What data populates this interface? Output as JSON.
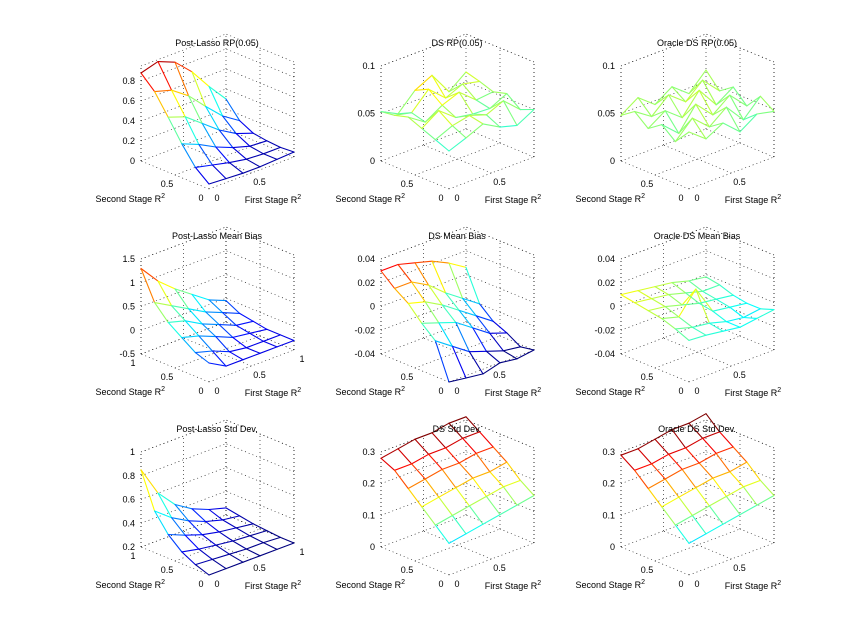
{
  "figure": {
    "background": "#ffffff",
    "colormap": "jet"
  },
  "chart_data": [
    {
      "type": "surface",
      "title": "Post-Lasso RP(0.05)",
      "xlabel": "First Stage R",
      "ylabel": "Second Stage R",
      "label_superscript": "2",
      "x_ticks": [
        "0",
        "0.5"
      ],
      "y_ticks": [
        "0",
        "0.5"
      ],
      "z_ticks": [
        "0",
        "0.2",
        "0.4",
        "0.6",
        "0.8"
      ],
      "zlim": [
        0,
        0.95
      ],
      "grid": "on",
      "x": [
        0,
        0.2,
        0.4,
        0.6,
        0.8,
        1.0
      ],
      "y": [
        0,
        0.2,
        0.4,
        0.6,
        0.8,
        1.0
      ],
      "z": [
        [
          0.05,
          0.04,
          0.03,
          0.03,
          0.04,
          0.05
        ],
        [
          0.16,
          0.12,
          0.08,
          0.05,
          0.04,
          0.04
        ],
        [
          0.34,
          0.27,
          0.18,
          0.11,
          0.06,
          0.05
        ],
        [
          0.55,
          0.49,
          0.36,
          0.23,
          0.13,
          0.07
        ],
        [
          0.75,
          0.7,
          0.58,
          0.41,
          0.25,
          0.14
        ],
        [
          0.88,
          0.93,
          0.86,
          0.7,
          0.49,
          0.3
        ]
      ]
    },
    {
      "type": "surface",
      "title": "DS RP(0.05)",
      "xlabel": "First Stage R",
      "ylabel": "Second Stage R",
      "label_superscript": "2",
      "x_ticks": [
        "0",
        "0.5"
      ],
      "y_ticks": [
        "0",
        "0.5"
      ],
      "z_ticks": [
        "0",
        "0.05",
        "0.1"
      ],
      "zlim": [
        0,
        0.1
      ],
      "grid": "on",
      "x": [
        0,
        0.2,
        0.4,
        0.6,
        0.8,
        1.0
      ],
      "y": [
        0,
        0.2,
        0.4,
        0.6,
        0.8,
        1.0
      ],
      "z": [
        [
          0.04,
          0.047,
          0.055,
          0.045,
          0.04,
          0.05
        ],
        [
          0.046,
          0.054,
          0.058,
          0.052,
          0.06,
          0.044
        ],
        [
          0.052,
          0.064,
          0.05,
          0.047,
          0.046,
          0.055
        ],
        [
          0.058,
          0.046,
          0.057,
          0.064,
          0.049,
          0.051
        ],
        [
          0.054,
          0.05,
          0.068,
          0.052,
          0.06,
          0.056
        ],
        [
          0.052,
          0.043,
          0.061,
          0.07,
          0.046,
          0.06
        ]
      ]
    },
    {
      "type": "surface",
      "title": "Oracle DS RP(0.05)",
      "xlabel": "First Stage R",
      "ylabel": "Second Stage R",
      "label_superscript": "2",
      "x_ticks": [
        "0",
        "0.5"
      ],
      "y_ticks": [
        "0",
        "0.5"
      ],
      "z_ticks": [
        "0",
        "0.05",
        "0.1"
      ],
      "zlim": [
        0,
        0.1
      ],
      "grid": "on",
      "x": [
        0,
        0.2,
        0.4,
        0.6,
        0.8,
        1.0
      ],
      "y": [
        0,
        0.2,
        0.4,
        0.6,
        0.8,
        1.0
      ],
      "z": [
        [
          0.06,
          0.046,
          0.056,
          0.04,
          0.052,
          0.048
        ],
        [
          0.044,
          0.062,
          0.046,
          0.06,
          0.04,
          0.058
        ],
        [
          0.056,
          0.04,
          0.064,
          0.046,
          0.06,
          0.042
        ],
        [
          0.046,
          0.058,
          0.044,
          0.066,
          0.044,
          0.056
        ],
        [
          0.058,
          0.046,
          0.062,
          0.048,
          0.064,
          0.046
        ],
        [
          0.048,
          0.06,
          0.046,
          0.058,
          0.044,
          0.062
        ]
      ]
    },
    {
      "type": "surface",
      "title": "Post-Lasso Mean Bias",
      "xlabel": "First Stage R",
      "ylabel": "Second Stage R",
      "label_superscript": "2",
      "x_ticks": [
        "0",
        "0.5",
        "1"
      ],
      "y_ticks": [
        "0",
        "0.5",
        "1"
      ],
      "z_ticks": [
        "-0.5",
        "0",
        "0.5",
        "1",
        "1.5"
      ],
      "zlim": [
        -0.5,
        1.5
      ],
      "grid": "on",
      "x": [
        0,
        0.2,
        0.4,
        0.6,
        0.8,
        1.0
      ],
      "y": [
        0,
        0.2,
        0.4,
        0.6,
        0.8,
        1.0
      ],
      "z": [
        [
          -0.1,
          -0.3,
          -0.3,
          -0.3,
          -0.3,
          -0.3
        ],
        [
          0.0,
          -0.1,
          -0.25,
          -0.3,
          -0.3,
          -0.3
        ],
        [
          0.2,
          0.1,
          -0.05,
          -0.2,
          -0.25,
          -0.3
        ],
        [
          0.4,
          0.3,
          0.1,
          -0.05,
          -0.2,
          -0.25
        ],
        [
          0.7,
          0.5,
          0.3,
          0.1,
          -0.05,
          -0.2
        ],
        [
          1.3,
          0.9,
          0.6,
          0.35,
          0.1,
          -0.05
        ]
      ]
    },
    {
      "type": "surface",
      "title": "DS Mean Bias",
      "xlabel": "First Stage R",
      "ylabel": "Second Stage R",
      "label_superscript": "2",
      "x_ticks": [
        "0",
        "0.5"
      ],
      "y_ticks": [
        "0",
        "0.5"
      ],
      "z_ticks": [
        "-0.04",
        "-0.02",
        "0",
        "0.02",
        "0.04"
      ],
      "zlim": [
        -0.04,
        0.04
      ],
      "grid": "on",
      "x": [
        0,
        0.2,
        0.4,
        0.6,
        0.8,
        1.0
      ],
      "y": [
        0,
        0.2,
        0.4,
        0.6,
        0.8,
        1.0
      ],
      "z": [
        [
          -0.04,
          -0.042,
          -0.044,
          -0.04,
          -0.042,
          -0.04
        ],
        [
          -0.01,
          -0.02,
          -0.03,
          -0.035,
          -0.04,
          -0.042
        ],
        [
          0.0,
          -0.005,
          -0.01,
          -0.02,
          -0.03,
          -0.035
        ],
        [
          0.012,
          0.008,
          0.0,
          -0.01,
          -0.02,
          -0.03
        ],
        [
          0.02,
          0.02,
          0.012,
          0.0,
          -0.01,
          -0.02
        ],
        [
          0.03,
          0.03,
          0.026,
          0.022,
          0.015,
          0.006
        ]
      ]
    },
    {
      "type": "surface",
      "title": "Oracle DS Mean Bias",
      "xlabel": "First Stage R",
      "ylabel": "Second Stage R",
      "label_superscript": "2",
      "x_ticks": [
        "0",
        "0.5"
      ],
      "y_ticks": [
        "0",
        "0.5"
      ],
      "z_ticks": [
        "-0.04",
        "-0.02",
        "0",
        "0.02",
        "0.04"
      ],
      "zlim": [
        -0.04,
        0.04
      ],
      "grid": "on",
      "x": [
        0,
        0.2,
        0.4,
        0.6,
        0.8,
        1.0
      ],
      "y": [
        0,
        0.2,
        0.4,
        0.6,
        0.8,
        1.0
      ],
      "z": [
        [
          -0.005,
          -0.006,
          -0.008,
          -0.01,
          -0.008,
          -0.006
        ],
        [
          0.0,
          -0.004,
          -0.006,
          -0.01,
          -0.012,
          -0.01
        ],
        [
          0.004,
          0.0,
          0.018,
          -0.006,
          -0.008,
          -0.01
        ],
        [
          0.006,
          0.004,
          0.0,
          -0.004,
          -0.006,
          -0.008
        ],
        [
          0.008,
          0.006,
          0.004,
          0.0,
          -0.004,
          -0.004
        ],
        [
          0.01,
          0.008,
          0.006,
          0.004,
          0.0,
          -0.002
        ]
      ]
    },
    {
      "type": "surface",
      "title": "Post-Lasso Std Dev.",
      "xlabel": "First Stage R",
      "ylabel": "Second Stage R",
      "label_superscript": "2",
      "x_ticks": [
        "0",
        "0.5",
        "1"
      ],
      "y_ticks": [
        "0",
        "0.5",
        "1"
      ],
      "z_ticks": [
        "0.2",
        "0.4",
        "0.6",
        "0.8",
        "1"
      ],
      "zlim": [
        0.2,
        1.0
      ],
      "grid": "on",
      "x": [
        0,
        0.2,
        0.4,
        0.6,
        0.8,
        1.0
      ],
      "y": [
        0,
        0.2,
        0.4,
        0.6,
        0.8,
        1.0
      ],
      "z": [
        [
          0.2,
          0.2,
          0.2,
          0.2,
          0.2,
          0.2
        ],
        [
          0.24,
          0.23,
          0.22,
          0.21,
          0.21,
          0.2
        ],
        [
          0.3,
          0.27,
          0.25,
          0.23,
          0.22,
          0.21
        ],
        [
          0.4,
          0.34,
          0.29,
          0.26,
          0.24,
          0.22
        ],
        [
          0.55,
          0.44,
          0.36,
          0.3,
          0.26,
          0.24
        ],
        [
          0.85,
          0.6,
          0.45,
          0.36,
          0.3,
          0.26
        ]
      ]
    },
    {
      "type": "surface",
      "title": "DS Std Dev.",
      "xlabel": "First Stage R",
      "ylabel": "Second Stage R",
      "label_superscript": "2",
      "x_ticks": [
        "0",
        "0.5"
      ],
      "y_ticks": [
        "0",
        "0.5"
      ],
      "z_ticks": [
        "0",
        "0.1",
        "0.2",
        "0.3"
      ],
      "zlim": [
        0,
        0.3
      ],
      "grid": "on",
      "x": [
        0,
        0.2,
        0.4,
        0.6,
        0.8,
        1.0
      ],
      "y": [
        0,
        0.2,
        0.4,
        0.6,
        0.8,
        1.0
      ],
      "z": [
        [
          0.1,
          0.11,
          0.12,
          0.13,
          0.14,
          0.15
        ],
        [
          0.14,
          0.15,
          0.16,
          0.17,
          0.18,
          0.18
        ],
        [
          0.18,
          0.19,
          0.2,
          0.21,
          0.21,
          0.22
        ],
        [
          0.22,
          0.23,
          0.24,
          0.24,
          0.25,
          0.25
        ],
        [
          0.26,
          0.26,
          0.27,
          0.27,
          0.28,
          0.28
        ],
        [
          0.28,
          0.29,
          0.3,
          0.3,
          0.31,
          0.31
        ]
      ]
    },
    {
      "type": "surface",
      "title": "Oracle DS Std Dev.",
      "xlabel": "First Stage R",
      "ylabel": "Second Stage R",
      "label_superscript": "2",
      "x_ticks": [
        "0",
        "0.5"
      ],
      "y_ticks": [
        "0",
        "0.5"
      ],
      "z_ticks": [
        "0",
        "0.1",
        "0.2",
        "0.3"
      ],
      "zlim": [
        0,
        0.3
      ],
      "grid": "on",
      "x": [
        0,
        0.2,
        0.4,
        0.6,
        0.8,
        1.0
      ],
      "y": [
        0,
        0.2,
        0.4,
        0.6,
        0.8,
        1.0
      ],
      "z": [
        [
          0.1,
          0.11,
          0.12,
          0.13,
          0.14,
          0.15
        ],
        [
          0.14,
          0.15,
          0.16,
          0.17,
          0.18,
          0.18
        ],
        [
          0.18,
          0.19,
          0.2,
          0.21,
          0.21,
          0.22
        ],
        [
          0.22,
          0.23,
          0.24,
          0.24,
          0.25,
          0.25
        ],
        [
          0.26,
          0.26,
          0.27,
          0.27,
          0.28,
          0.28
        ],
        [
          0.29,
          0.29,
          0.3,
          0.31,
          0.31,
          0.32
        ]
      ]
    }
  ]
}
